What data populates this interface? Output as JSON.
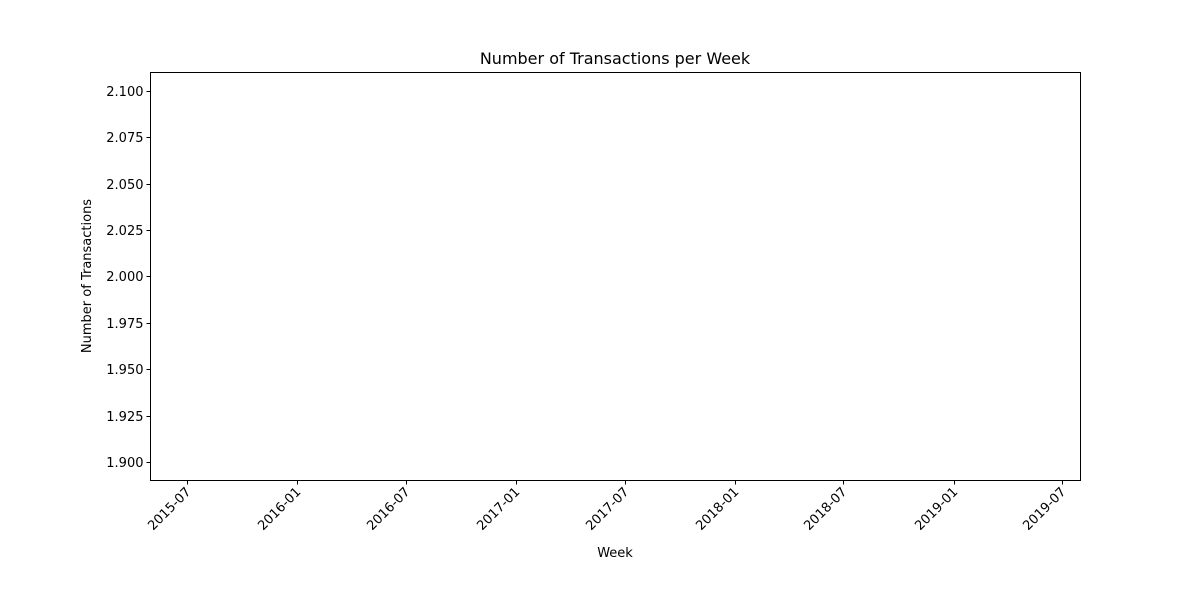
{
  "chart_data": {
    "type": "line",
    "title": "Number of Transactions per Week",
    "xlabel": "Week",
    "ylabel": "Number of Transactions",
    "x_type": "date",
    "xlim": [
      "2015-05-01",
      "2019-08-01"
    ],
    "ylim": [
      1.89,
      2.11
    ],
    "x_ticks": [
      "2015-07",
      "2016-01",
      "2016-07",
      "2017-01",
      "2017-07",
      "2018-01",
      "2018-07",
      "2019-01",
      "2019-07"
    ],
    "y_ticks": [
      "1.900",
      "1.925",
      "1.950",
      "1.975",
      "2.000",
      "2.025",
      "2.050",
      "2.075",
      "2.100"
    ],
    "series": [],
    "grid": false,
    "legend": "none"
  }
}
